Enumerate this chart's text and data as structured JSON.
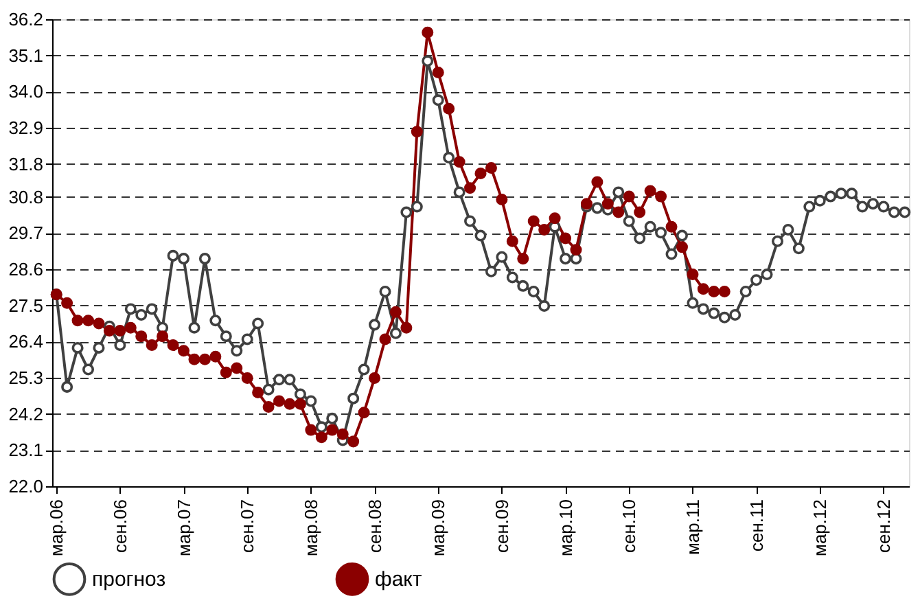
{
  "chart_data": {
    "type": "line",
    "categories": [
      "мар.06",
      null,
      null,
      null,
      null,
      null,
      "сен.06",
      null,
      null,
      null,
      null,
      null,
      "мар.07",
      null,
      null,
      null,
      null,
      null,
      "сен.07",
      null,
      null,
      null,
      null,
      null,
      "мар.08",
      null,
      null,
      null,
      null,
      null,
      "сен.08",
      null,
      null,
      null,
      null,
      null,
      "мар.09",
      null,
      null,
      null,
      null,
      null,
      "сен.09",
      null,
      null,
      null,
      null,
      null,
      "мар.10",
      null,
      null,
      null,
      null,
      null,
      "сен.10",
      null,
      null,
      null,
      null,
      null,
      "мар.11",
      null,
      null,
      null,
      null,
      null,
      "сен.11",
      null,
      null,
      null,
      null,
      null,
      "мар.12",
      null,
      null,
      null,
      null,
      null,
      "сен.12",
      null,
      null
    ],
    "series": [
      {
        "name": "прогноз",
        "color": "#404040",
        "marker": "circle",
        "values": [
          27.83,
          25.02,
          26.21,
          25.55,
          26.21,
          26.86,
          26.29,
          27.39,
          27.21,
          27.39,
          26.82,
          29.01,
          28.92,
          26.82,
          28.92,
          27.04,
          26.56,
          26.12,
          26.47,
          26.95,
          24.94,
          25.24,
          25.24,
          24.8,
          24.59,
          23.8,
          24.06,
          23.4,
          24.67,
          25.55,
          26.91,
          27.92,
          26.65,
          30.33,
          30.5,
          34.93,
          33.74,
          31.99,
          30.94,
          30.06,
          29.62,
          28.53,
          28.97,
          28.35,
          28.09,
          27.92,
          27.48,
          29.89,
          28.92,
          28.92,
          30.5,
          30.46,
          30.41,
          30.94,
          30.06,
          29.54,
          29.89,
          29.71,
          29.06,
          29.62,
          27.57,
          27.39,
          27.26,
          27.13,
          27.21,
          27.92,
          28.27,
          28.44,
          29.45,
          29.8,
          29.23,
          30.5,
          30.68,
          30.81,
          30.9,
          30.9,
          30.5,
          30.59,
          30.5,
          30.33,
          30.33
        ]
      },
      {
        "name": "факт",
        "color": "#8b0000",
        "marker": "circle",
        "values": [
          27.83,
          27.57,
          27.04,
          27.04,
          26.95,
          26.73,
          26.73,
          26.82,
          26.56,
          26.29,
          26.56,
          26.29,
          26.12,
          25.86,
          25.86,
          25.94,
          25.46,
          25.59,
          25.29,
          24.85,
          24.41,
          24.59,
          24.5,
          24.5,
          23.71,
          23.49,
          23.71,
          23.58,
          23.36,
          24.24,
          25.29,
          26.47,
          27.3,
          26.82,
          32.78,
          35.8,
          34.58,
          33.48,
          31.86,
          31.07,
          31.51,
          31.68,
          30.72,
          29.45,
          28.92,
          30.06,
          29.8,
          30.15,
          29.54,
          29.19,
          30.59,
          31.25,
          30.59,
          30.33,
          30.81,
          30.33,
          30.98,
          30.81,
          29.89,
          29.27,
          28.44,
          28.0,
          27.92,
          27.92,
          null,
          null,
          null,
          null,
          null,
          null,
          null,
          null,
          null,
          null,
          null,
          null,
          null,
          null,
          null,
          null,
          null
        ]
      }
    ],
    "ylim": [
      22,
      36.2
    ],
    "yticks": [
      {
        "value": 22,
        "label": "22.0"
      },
      23.1,
      24.2,
      25.3,
      26.4,
      27.5,
      28.6,
      29.7,
      30.8,
      31.8,
      32.9,
      {
        "value": 34,
        "label": "34.0"
      },
      35.1,
      36.2
    ],
    "grid": "y",
    "legend": "bottom",
    "line_style": "solid"
  }
}
